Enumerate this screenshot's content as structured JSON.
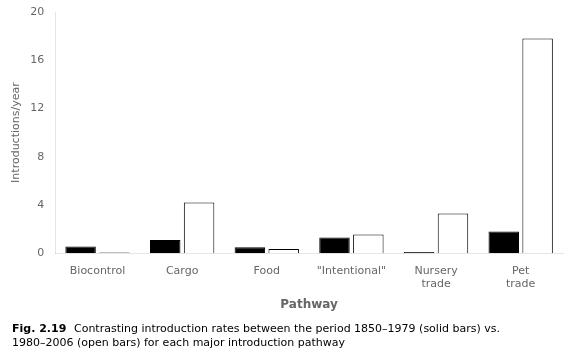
{
  "chart_data": {
    "type": "bar",
    "categories": [
      "Biocontrol",
      "Cargo",
      "Food",
      "\"Intentional\"",
      "Nursery\ntrade",
      "Pet\ntrade"
    ],
    "series": [
      {
        "color": "#000000",
        "values": [
          0.55,
          1.1,
          0.5,
          1.3,
          0.1,
          1.8
        ]
      },
      {
        "color": "#ffffff",
        "values": [
          0.05,
          4.2,
          0.35,
          1.55,
          3.3,
          17.8
        ]
      }
    ],
    "xlabel": "Pathway",
    "ylabel": "Introductions/year",
    "ylim": [
      0,
      20
    ],
    "yticks": [
      0,
      4,
      8,
      12,
      16,
      20
    ],
    "grid": false,
    "annotations": [
      "Fig. 2.19",
      "Contrasting introduction rates between the period 1850–1979 (solid bars) vs. 1980–2006 (open bars) for each major introduction pathway"
    ]
  }
}
